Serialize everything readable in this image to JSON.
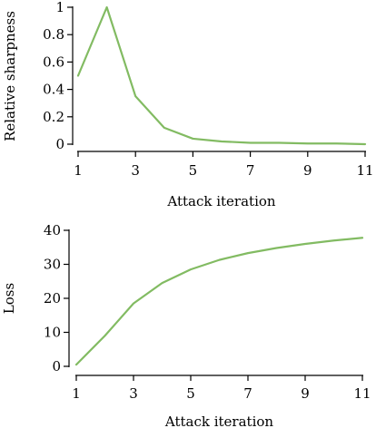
{
  "chart_data": [
    {
      "type": "line",
      "xlabel": "Attack iteration",
      "ylabel": "Relative sharpness",
      "xlim": [
        1,
        11
      ],
      "ylim": [
        0,
        1
      ],
      "xticks": [
        1,
        3,
        5,
        7,
        9,
        11
      ],
      "yticks": [
        0,
        0.2,
        0.4,
        0.6,
        0.8,
        1
      ],
      "ytick_labels": [
        "0",
        "0.2",
        "0.4",
        "0.6",
        "0.8",
        "1"
      ],
      "grid": false,
      "color": "#82bb62",
      "series": [
        {
          "x": [
            1,
            2,
            3,
            4,
            5,
            6,
            7,
            8,
            9,
            10,
            11
          ],
          "values": [
            0.5,
            1.0,
            0.35,
            0.12,
            0.04,
            0.02,
            0.01,
            0.01,
            0.005,
            0.005,
            0.0
          ]
        }
      ]
    },
    {
      "type": "line",
      "xlabel": "Attack iteration",
      "ylabel": "Loss",
      "xlim": [
        1,
        11
      ],
      "ylim": [
        0,
        40
      ],
      "xticks": [
        1,
        3,
        5,
        7,
        9,
        11
      ],
      "yticks": [
        0,
        10,
        20,
        30,
        40
      ],
      "ytick_labels": [
        "0",
        "10",
        "20",
        "30",
        "40"
      ],
      "grid": false,
      "color": "#82bb62",
      "series": [
        {
          "x": [
            1,
            2,
            3,
            4,
            5,
            6,
            7,
            8,
            9,
            10,
            11
          ],
          "values": [
            0.5,
            9.0,
            18.5,
            24.5,
            28.5,
            31.3,
            33.3,
            34.8,
            36.0,
            37.0,
            37.8
          ]
        }
      ]
    }
  ]
}
